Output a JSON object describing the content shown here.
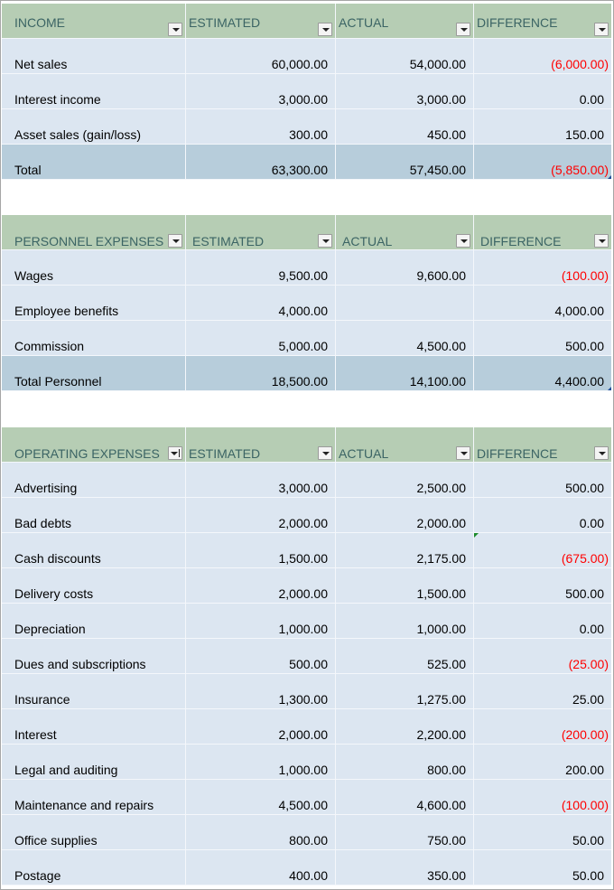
{
  "income": {
    "headers": [
      "INCOME",
      "ESTIMATED",
      "ACTUAL",
      "DIFFERENCE"
    ],
    "rows": [
      [
        "Net sales",
        "60,000.00",
        "54,000.00",
        "(6,000.00)"
      ],
      [
        "Interest income",
        "3,000.00",
        "3,000.00",
        "0.00"
      ],
      [
        "Asset sales (gain/loss)",
        "300.00",
        "450.00",
        "150.00"
      ]
    ],
    "total": [
      "Total",
      "63,300.00",
      "57,450.00",
      "(5,850.00)"
    ]
  },
  "personnel": {
    "headers": [
      "PERSONNEL EXPENSES",
      "ESTIMATED",
      "ACTUAL",
      "DIFFERENCE"
    ],
    "rows": [
      [
        "Wages",
        "9,500.00",
        "9,600.00",
        "(100.00)"
      ],
      [
        "Employee benefits",
        "4,000.00",
        "",
        "4,000.00"
      ],
      [
        "Commission",
        "5,000.00",
        "4,500.00",
        "500.00"
      ]
    ],
    "total": [
      "Total Personnel",
      "18,500.00",
      "14,100.00",
      "4,400.00"
    ]
  },
  "operating": {
    "headers": [
      "OPERATING EXPENSES",
      "ESTIMATED",
      "ACTUAL",
      "DIFFERENCE"
    ],
    "rows": [
      [
        "Advertising",
        "3,000.00",
        "2,500.00",
        "500.00"
      ],
      [
        "Bad debts",
        "2,000.00",
        "2,000.00",
        "0.00"
      ],
      [
        "Cash discounts",
        "1,500.00",
        "2,175.00",
        "(675.00)"
      ],
      [
        "Delivery costs",
        "2,000.00",
        "1,500.00",
        "500.00"
      ],
      [
        "Depreciation",
        "1,000.00",
        "1,000.00",
        "0.00"
      ],
      [
        "Dues and subscriptions",
        "500.00",
        "525.00",
        "(25.00)"
      ],
      [
        "Insurance",
        "1,300.00",
        "1,275.00",
        "25.00"
      ],
      [
        "Interest",
        "2,000.00",
        "2,200.00",
        "(200.00)"
      ],
      [
        "Legal and auditing",
        "1,000.00",
        "800.00",
        "200.00"
      ],
      [
        "Maintenance and repairs",
        "4,500.00",
        "4,600.00",
        "(100.00)"
      ],
      [
        "Office supplies",
        "800.00",
        "750.00",
        "50.00"
      ],
      [
        "Postage",
        "400.00",
        "350.00",
        "50.00"
      ]
    ]
  },
  "colors": {
    "header_bg": "#b6cdb4",
    "row_bg": "#dce6f1",
    "total_bg": "#b7cddb",
    "header_text": "#3b6464",
    "negative": "#ff0000"
  }
}
